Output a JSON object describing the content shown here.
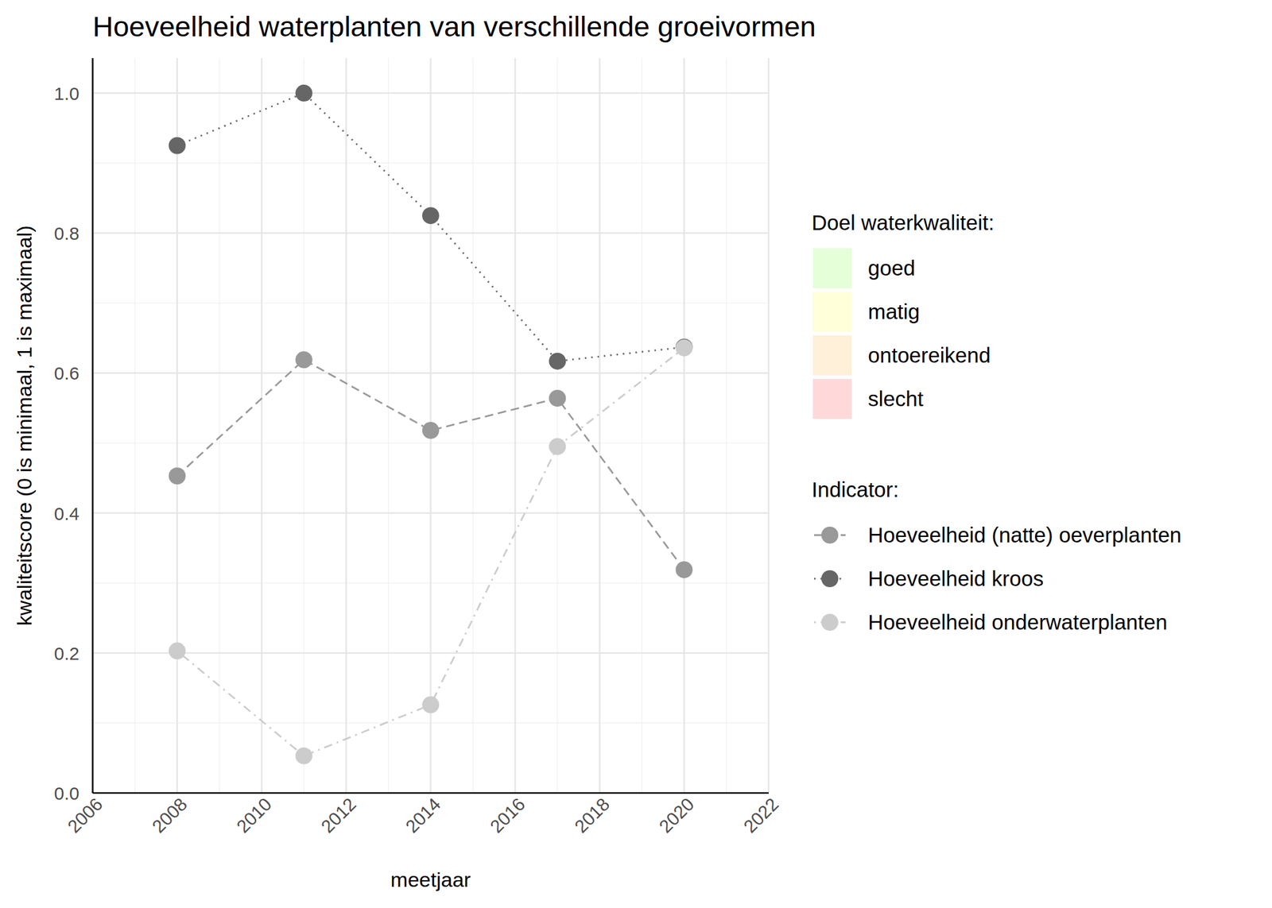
{
  "chart_data": {
    "type": "line",
    "title": "Hoeveelheid waterplanten van verschillende groeivormen",
    "x_label": "meetjaar",
    "y_label": "kwaliteitscore (0 is minimaal, 1 is maximaal)",
    "x": [
      2008,
      2011,
      2014,
      2017,
      2020
    ],
    "xlim": [
      2006,
      2022
    ],
    "xticks": [
      2006,
      2008,
      2010,
      2012,
      2014,
      2016,
      2018,
      2020,
      2022
    ],
    "ylim": [
      0,
      1.05
    ],
    "yticks": [
      {
        "value": 0,
        "label": "0.0"
      },
      0.2,
      0.4,
      0.6,
      0.8,
      {
        "value": 1,
        "label": "1.0"
      }
    ],
    "grid": true,
    "quality_legend_title": "Doel waterkwaliteit:",
    "quality_classes": [
      {
        "name": "goed",
        "color": "#e5ffd9"
      },
      {
        "name": "matig",
        "color": "#ffffd9"
      },
      {
        "name": "ontoereikend",
        "color": "#fff0d9"
      },
      {
        "name": "slecht",
        "color": "#ffd9d9"
      }
    ],
    "legend_title": "Indicator:",
    "series": [
      {
        "name": "Hoeveelheid (natte) oeverplanten",
        "color": "#999999",
        "line_style": "dashed",
        "marker": "circle",
        "values": [
          0.453,
          0.619,
          0.518,
          0.564,
          0.319
        ]
      },
      {
        "name": "Hoeveelheid kroos",
        "color": "#666666",
        "line_style": "dotted",
        "marker": "circle",
        "values": [
          0.925,
          1.0,
          0.825,
          0.617,
          0.637
        ]
      },
      {
        "name": "Hoeveelheid onderwaterplanten",
        "color": "#cccccc",
        "line_style": "dotdash",
        "marker": "circle",
        "values": [
          0.203,
          0.053,
          0.126,
          0.495,
          0.636
        ]
      }
    ]
  }
}
